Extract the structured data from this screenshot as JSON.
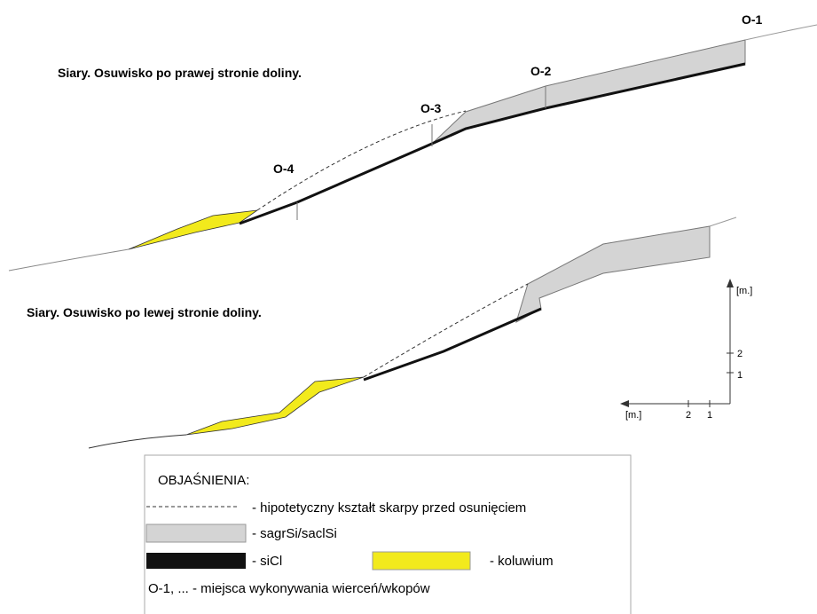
{
  "sections": [
    {
      "title": "Siary. Osuwisko po prawej stronie doliny.",
      "boreholes": [
        "O-1",
        "O-2",
        "O-3",
        "O-4"
      ]
    },
    {
      "title": "Siary. Osuwisko po lewej stronie doliny."
    }
  ],
  "scale": {
    "vertical_unit": "[m.]",
    "vertical_ticks": [
      2,
      1
    ],
    "horizontal_unit": "[m.]",
    "horizontal_ticks": [
      2,
      1
    ]
  },
  "legend": {
    "title": "OBJAŚNIENIA:",
    "items": [
      "- hipotetyczny kształt skarpy przed osunięciem",
      "- sagrSi/saclSi",
      "- siCl",
      "- koluwium"
    ],
    "note": "O-1, ... - miejsca wykonywania wierceń/wkopów"
  }
}
